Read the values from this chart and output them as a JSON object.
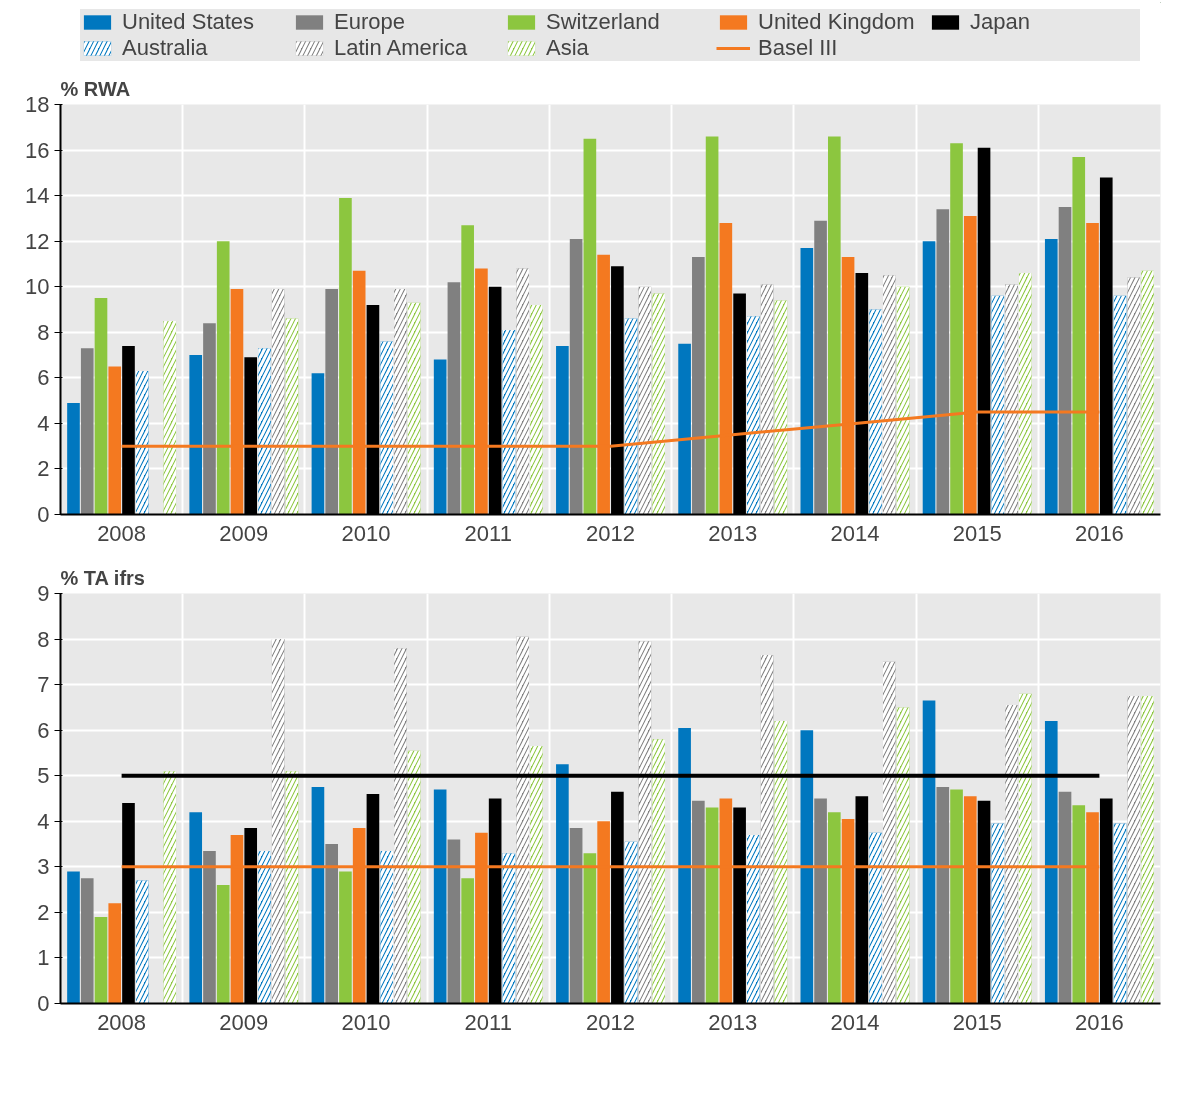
{
  "chart_data": [
    {
      "type": "bar",
      "ylabel": "% RWA",
      "categories": [
        "2008",
        "2009",
        "2010",
        "2011",
        "2012",
        "2013",
        "2014",
        "2015",
        "2016"
      ],
      "ylim": [
        0,
        18
      ],
      "yticks": [
        0,
        2,
        4,
        6,
        8,
        10,
        12,
        14,
        16,
        18
      ],
      "grid": true,
      "legend": "top",
      "series": [
        {
          "name": "United States",
          "color": "#0077bf",
          "values": [
            4.9,
            7.0,
            6.2,
            6.8,
            7.4,
            7.5,
            11.7,
            12.0,
            12.1
          ]
        },
        {
          "name": "Europe",
          "color": "#808080",
          "values": [
            7.3,
            8.4,
            9.9,
            10.2,
            12.1,
            11.3,
            12.9,
            13.4,
            13.5
          ]
        },
        {
          "name": "Switzerland",
          "color": "#8cc63f",
          "values": [
            9.5,
            12.0,
            13.9,
            12.7,
            16.5,
            16.6,
            16.6,
            16.3,
            15.7
          ]
        },
        {
          "name": "United Kingdom",
          "color": "#f47920",
          "values": [
            6.5,
            9.9,
            10.7,
            10.8,
            11.4,
            12.8,
            11.3,
            13.1,
            12.8
          ]
        },
        {
          "name": "Japan",
          "color": "#000000",
          "values": [
            7.4,
            6.9,
            9.2,
            10.0,
            10.9,
            9.7,
            10.6,
            16.1,
            14.8
          ]
        },
        {
          "name": "Australia",
          "color": "#0077bf",
          "values": [
            6.3,
            7.3,
            7.6,
            8.1,
            8.6,
            8.7,
            9.0,
            9.6,
            9.6
          ]
        },
        {
          "name": "Latin America",
          "color": "#808080",
          "values": [
            null,
            9.9,
            9.9,
            10.8,
            10.0,
            10.1,
            10.5,
            10.1,
            10.4
          ]
        },
        {
          "name": "Asia",
          "color": "#8cc63f",
          "values": [
            8.5,
            8.6,
            9.3,
            9.2,
            9.7,
            9.4,
            10.0,
            10.6,
            10.7
          ]
        },
        {
          "name": "Basel III",
          "type": "line",
          "color": "#f47920",
          "values": [
            3,
            3,
            3,
            3,
            3,
            3.5,
            4,
            4.5,
            4.5
          ]
        }
      ]
    },
    {
      "type": "bar",
      "ylabel": "% TA ifrs",
      "categories": [
        "2008",
        "2009",
        "2010",
        "2011",
        "2012",
        "2013",
        "2014",
        "2015",
        "2016"
      ],
      "ylim": [
        0,
        9
      ],
      "yticks": [
        0,
        1,
        2,
        3,
        4,
        5,
        6,
        7,
        8,
        9
      ],
      "grid": true,
      "ref_lines": [
        {
          "axis": "y",
          "value": 5,
          "label": null,
          "color": "#000000"
        }
      ],
      "series": [
        {
          "color": "#0077bf",
          "values": [
            2.9,
            4.2,
            4.75,
            4.7,
            5.25,
            6.05,
            6.0,
            6.65,
            6.2
          ]
        },
        {
          "color": "#808080",
          "values": [
            2.75,
            3.35,
            3.5,
            3.6,
            3.85,
            4.45,
            4.5,
            4.75,
            4.65
          ]
        },
        {
          "color": "#8cc63f",
          "values": [
            1.9,
            2.6,
            2.9,
            2.75,
            3.3,
            4.3,
            4.2,
            4.7,
            4.35
          ]
        },
        {
          "color": "#f47920",
          "values": [
            2.2,
            3.7,
            3.85,
            3.75,
            4.0,
            4.5,
            4.05,
            4.55,
            4.2
          ]
        },
        {
          "color": "#000000",
          "values": [
            4.4,
            3.85,
            4.6,
            4.5,
            4.65,
            4.3,
            4.55,
            4.45,
            4.5
          ]
        },
        {
          "color": "#0077bf",
          "values": [
            2.7,
            3.35,
            3.35,
            3.3,
            3.55,
            3.7,
            3.75,
            3.95,
            3.95
          ]
        },
        {
          "color": "#808080",
          "values": [
            null,
            8.0,
            7.8,
            8.05,
            7.95,
            7.65,
            7.5,
            6.55,
            6.75
          ]
        },
        {
          "color": "#8cc63f",
          "values": [
            5.1,
            5.1,
            5.55,
            5.65,
            5.8,
            6.2,
            6.5,
            6.8,
            6.75
          ]
        },
        {
          "type": "line",
          "color": "#f47920",
          "values": [
            3,
            3,
            3,
            3,
            3,
            3,
            3,
            3,
            3
          ]
        }
      ]
    }
  ]
}
